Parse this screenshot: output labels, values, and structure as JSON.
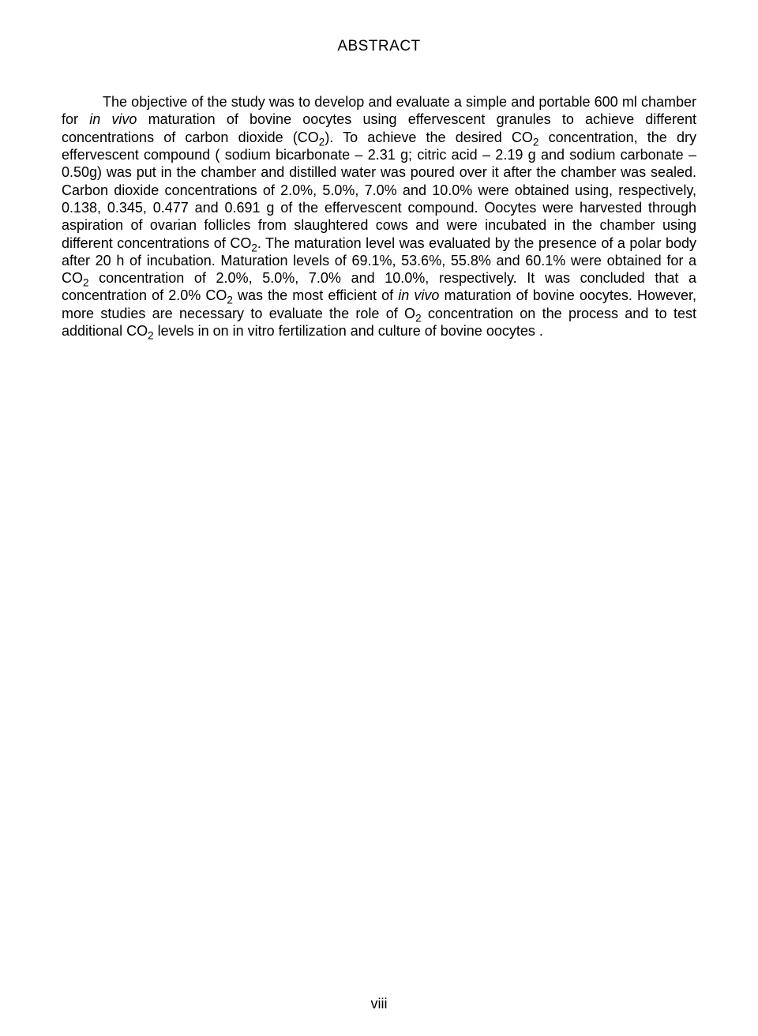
{
  "title": "ABSTRACT",
  "body_parts": {
    "p1": "The objective of the study was to develop and evaluate a simple and portable 600 ml chamber for ",
    "p2": "in vivo",
    "p3": " maturation of bovine oocytes using effervescent granules to achieve different concentrations of carbon dioxide (CO",
    "p4": "). To achieve the desired CO",
    "p5": " concentration, the dry effervescent compound ( sodium bicarbonate – 2.31 g; citric acid – 2.19 g and sodium carbonate – 0.50g) was put in the chamber and distilled water was poured over it after the chamber was sealed. Carbon dioxide concentrations of 2.0%, 5.0%, 7.0% and 10.0% were obtained using, respectively, 0.138, 0.345, 0.477 and 0.691 g of the effervescent compound. Oocytes were harvested through aspiration of ovarian follicles from slaughtered cows and were incubated in the chamber using different concentrations of CO",
    "p6": ". The maturation level was evaluated by the presence of a polar body after 20 h of incubation. Maturation levels of 69.1%, 53.6%, 55.8% and 60.1% were obtained for a CO",
    "p7": " concentration of  2.0%, 5.0%, 7.0% and 10.0%, respectively. It was concluded that a concentration of 2.0% CO",
    "p8": " was the most efficient of ",
    "p9": "in vivo",
    "p10": " maturation of bovine oocytes. However, more studies are necessary to evaluate the role of O",
    "p11": " concentration on the process and to test additional CO",
    "p12": " levels in on in vitro fertilization and culture of bovine oocytes .",
    "sub2": "2"
  },
  "page_number": "viii"
}
